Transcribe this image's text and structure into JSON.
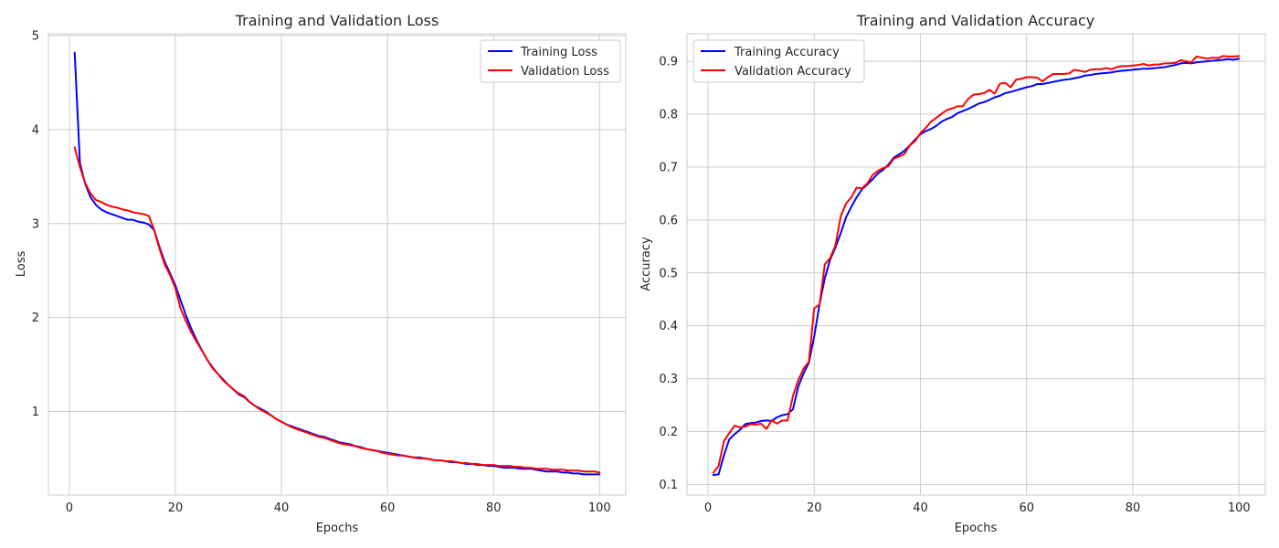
{
  "colors": {
    "training": "#0000ff",
    "validation": "#ff0000",
    "grid": "#cccccc",
    "background": "#ffffff"
  },
  "chart_data": [
    {
      "type": "line",
      "title": "Training and Validation Loss",
      "xlabel": "Epochs",
      "ylabel": "Loss",
      "xlim": [
        -3.95,
        104.95
      ],
      "ylim": [
        0.11,
        5.02
      ],
      "xticks": [
        0,
        20,
        40,
        60,
        80,
        100
      ],
      "yticks": [
        1,
        2,
        3,
        4,
        5
      ],
      "grid": true,
      "legend": "upper right",
      "x": [
        1,
        2,
        3,
        4,
        5,
        6,
        7,
        8,
        9,
        10,
        11,
        12,
        13,
        14,
        15,
        16,
        17,
        18,
        19,
        20,
        21,
        22,
        23,
        24,
        25,
        26,
        27,
        28,
        29,
        30,
        31,
        32,
        33,
        34,
        35,
        36,
        37,
        38,
        39,
        40,
        41,
        42,
        43,
        44,
        45,
        46,
        47,
        48,
        49,
        50,
        51,
        52,
        53,
        54,
        55,
        56,
        57,
        58,
        59,
        60,
        61,
        62,
        63,
        64,
        65,
        66,
        67,
        68,
        69,
        70,
        71,
        72,
        73,
        74,
        75,
        76,
        77,
        78,
        79,
        80,
        81,
        82,
        83,
        84,
        85,
        86,
        87,
        88,
        89,
        90,
        91,
        92,
        93,
        94,
        95,
        96,
        97,
        98,
        99,
        100
      ],
      "series": [
        {
          "name": "Training Loss",
          "color": "#0000ff",
          "values": [
            4.82,
            3.64,
            3.42,
            3.28,
            3.2,
            3.15,
            3.12,
            3.1,
            3.08,
            3.06,
            3.04,
            3.04,
            3.02,
            3.01,
            2.99,
            2.93,
            2.75,
            2.59,
            2.47,
            2.34,
            2.18,
            2.02,
            1.88,
            1.76,
            1.65,
            1.55,
            1.47,
            1.4,
            1.34,
            1.28,
            1.23,
            1.18,
            1.15,
            1.1,
            1.06,
            1.03,
            1.0,
            0.96,
            0.92,
            0.89,
            0.86,
            0.84,
            0.82,
            0.8,
            0.78,
            0.76,
            0.74,
            0.73,
            0.71,
            0.69,
            0.67,
            0.66,
            0.65,
            0.63,
            0.62,
            0.6,
            0.59,
            0.58,
            0.57,
            0.56,
            0.55,
            0.54,
            0.53,
            0.52,
            0.51,
            0.51,
            0.5,
            0.49,
            0.48,
            0.48,
            0.47,
            0.46,
            0.46,
            0.45,
            0.44,
            0.44,
            0.43,
            0.43,
            0.42,
            0.42,
            0.41,
            0.4,
            0.4,
            0.4,
            0.39,
            0.39,
            0.39,
            0.38,
            0.37,
            0.36,
            0.36,
            0.36,
            0.35,
            0.35,
            0.34,
            0.34,
            0.33,
            0.33,
            0.33,
            0.33
          ]
        },
        {
          "name": "Validation Loss",
          "color": "#ff0000",
          "values": [
            3.81,
            3.6,
            3.43,
            3.32,
            3.25,
            3.23,
            3.2,
            3.18,
            3.17,
            3.15,
            3.14,
            3.12,
            3.11,
            3.1,
            3.08,
            2.93,
            2.73,
            2.56,
            2.45,
            2.31,
            2.09,
            1.96,
            1.84,
            1.74,
            1.65,
            1.55,
            1.46,
            1.4,
            1.33,
            1.28,
            1.23,
            1.19,
            1.16,
            1.1,
            1.06,
            1.02,
            0.99,
            0.96,
            0.92,
            0.89,
            0.86,
            0.83,
            0.81,
            0.79,
            0.77,
            0.75,
            0.73,
            0.72,
            0.7,
            0.68,
            0.66,
            0.65,
            0.64,
            0.63,
            0.61,
            0.6,
            0.59,
            0.58,
            0.56,
            0.55,
            0.54,
            0.53,
            0.53,
            0.52,
            0.51,
            0.5,
            0.5,
            0.49,
            0.48,
            0.48,
            0.47,
            0.47,
            0.46,
            0.45,
            0.45,
            0.44,
            0.44,
            0.43,
            0.43,
            0.43,
            0.42,
            0.42,
            0.42,
            0.41,
            0.41,
            0.4,
            0.4,
            0.39,
            0.39,
            0.39,
            0.38,
            0.38,
            0.38,
            0.37,
            0.37,
            0.37,
            0.36,
            0.36,
            0.36,
            0.35
          ]
        }
      ]
    },
    {
      "type": "line",
      "title": "Training and Validation Accuracy",
      "xlabel": "Epochs",
      "ylabel": "Accuracy",
      "xlim": [
        -3.95,
        104.95
      ],
      "ylim": [
        0.08,
        0.952
      ],
      "xticks": [
        0,
        20,
        40,
        60,
        80,
        100
      ],
      "yticks": [
        0.1,
        0.2,
        0.3,
        0.4,
        0.5,
        0.6,
        0.7,
        0.8,
        0.9
      ],
      "grid": true,
      "legend": "upper left",
      "x": [
        1,
        2,
        3,
        4,
        5,
        6,
        7,
        8,
        9,
        10,
        11,
        12,
        13,
        14,
        15,
        16,
        17,
        18,
        19,
        20,
        21,
        22,
        23,
        24,
        25,
        26,
        27,
        28,
        29,
        30,
        31,
        32,
        33,
        34,
        35,
        36,
        37,
        38,
        39,
        40,
        41,
        42,
        43,
        44,
        45,
        46,
        47,
        48,
        49,
        50,
        51,
        52,
        53,
        54,
        55,
        56,
        57,
        58,
        59,
        60,
        61,
        62,
        63,
        64,
        65,
        66,
        67,
        68,
        69,
        70,
        71,
        72,
        73,
        74,
        75,
        76,
        77,
        78,
        79,
        80,
        81,
        82,
        83,
        84,
        85,
        86,
        87,
        88,
        89,
        90,
        91,
        92,
        93,
        94,
        95,
        96,
        97,
        98,
        99,
        100
      ],
      "series": [
        {
          "name": "Training Accuracy",
          "color": "#0000ff",
          "values": [
            0.118,
            0.119,
            0.155,
            0.185,
            0.195,
            0.203,
            0.214,
            0.216,
            0.217,
            0.22,
            0.221,
            0.22,
            0.227,
            0.231,
            0.233,
            0.242,
            0.285,
            0.31,
            0.33,
            0.38,
            0.44,
            0.49,
            0.525,
            0.548,
            0.575,
            0.605,
            0.625,
            0.643,
            0.658,
            0.667,
            0.677,
            0.688,
            0.695,
            0.705,
            0.718,
            0.724,
            0.731,
            0.741,
            0.752,
            0.762,
            0.768,
            0.772,
            0.778,
            0.786,
            0.791,
            0.795,
            0.802,
            0.806,
            0.81,
            0.815,
            0.82,
            0.823,
            0.827,
            0.832,
            0.835,
            0.84,
            0.842,
            0.845,
            0.848,
            0.851,
            0.853,
            0.857,
            0.857,
            0.859,
            0.861,
            0.863,
            0.865,
            0.866,
            0.868,
            0.87,
            0.873,
            0.874,
            0.876,
            0.877,
            0.878,
            0.879,
            0.881,
            0.882,
            0.883,
            0.884,
            0.885,
            0.886,
            0.886,
            0.887,
            0.888,
            0.889,
            0.891,
            0.893,
            0.896,
            0.897,
            0.896,
            0.898,
            0.899,
            0.9,
            0.901,
            0.902,
            0.903,
            0.904,
            0.903,
            0.905
          ]
        },
        {
          "name": "Validation Accuracy",
          "color": "#ff0000",
          "values": [
            0.122,
            0.135,
            0.182,
            0.197,
            0.211,
            0.208,
            0.209,
            0.214,
            0.213,
            0.215,
            0.205,
            0.221,
            0.215,
            0.221,
            0.221,
            0.267,
            0.297,
            0.319,
            0.332,
            0.433,
            0.44,
            0.516,
            0.528,
            0.552,
            0.607,
            0.631,
            0.643,
            0.661,
            0.66,
            0.669,
            0.685,
            0.693,
            0.698,
            0.702,
            0.716,
            0.72,
            0.725,
            0.741,
            0.749,
            0.764,
            0.774,
            0.786,
            0.793,
            0.801,
            0.808,
            0.811,
            0.815,
            0.815,
            0.829,
            0.837,
            0.838,
            0.84,
            0.846,
            0.839,
            0.858,
            0.859,
            0.851,
            0.865,
            0.867,
            0.87,
            0.87,
            0.869,
            0.862,
            0.87,
            0.876,
            0.876,
            0.876,
            0.877,
            0.884,
            0.882,
            0.88,
            0.884,
            0.885,
            0.885,
            0.887,
            0.885,
            0.889,
            0.891,
            0.891,
            0.892,
            0.893,
            0.895,
            0.892,
            0.894,
            0.894,
            0.896,
            0.896,
            0.897,
            0.902,
            0.9,
            0.898,
            0.909,
            0.907,
            0.905,
            0.907,
            0.906,
            0.91,
            0.909,
            0.909,
            0.91
          ]
        }
      ]
    }
  ]
}
